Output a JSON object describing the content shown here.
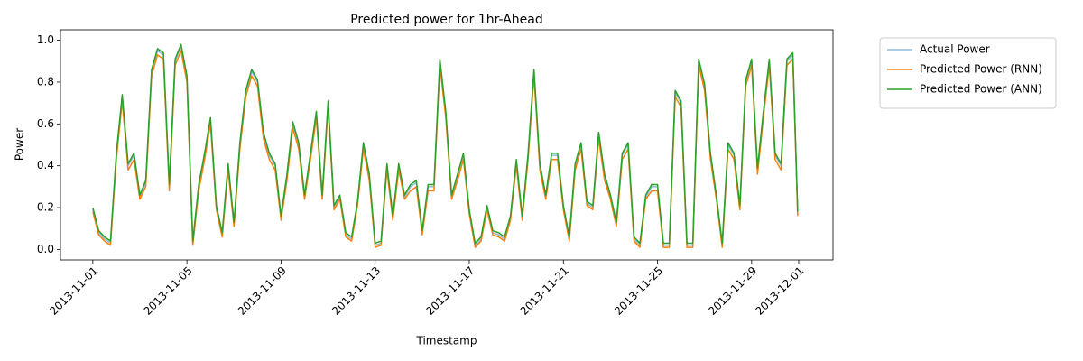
{
  "chart_data": {
    "type": "line",
    "title": "Predicted power for 1hr-Ahead",
    "xlabel": "Timestamp",
    "ylabel": "Power",
    "x": [
      "2013-11-01 00:00",
      "2013-11-01 06:00",
      "2013-11-01 12:00",
      "2013-11-01 18:00",
      "2013-11-02 00:00",
      "2013-11-02 06:00",
      "2013-11-02 12:00",
      "2013-11-02 18:00",
      "2013-11-03 00:00",
      "2013-11-03 06:00",
      "2013-11-03 12:00",
      "2013-11-03 18:00",
      "2013-11-04 00:00",
      "2013-11-04 06:00",
      "2013-11-04 12:00",
      "2013-11-04 18:00",
      "2013-11-05 00:00",
      "2013-11-05 06:00",
      "2013-11-05 12:00",
      "2013-11-05 18:00",
      "2013-11-06 00:00",
      "2013-11-06 06:00",
      "2013-11-06 12:00",
      "2013-11-06 18:00",
      "2013-11-07 00:00",
      "2013-11-07 06:00",
      "2013-11-07 12:00",
      "2013-11-07 18:00",
      "2013-11-08 00:00",
      "2013-11-08 06:00",
      "2013-11-08 12:00",
      "2013-11-08 18:00",
      "2013-11-09 00:00",
      "2013-11-09 06:00",
      "2013-11-09 12:00",
      "2013-11-09 18:00",
      "2013-11-10 00:00",
      "2013-11-10 06:00",
      "2013-11-10 12:00",
      "2013-11-10 18:00",
      "2013-11-11 00:00",
      "2013-11-11 06:00",
      "2013-11-11 12:00",
      "2013-11-11 18:00",
      "2013-11-12 00:00",
      "2013-11-12 06:00",
      "2013-11-12 12:00",
      "2013-11-12 18:00",
      "2013-11-13 00:00",
      "2013-11-13 06:00",
      "2013-11-13 12:00",
      "2013-11-13 18:00",
      "2013-11-14 00:00",
      "2013-11-14 06:00",
      "2013-11-14 12:00",
      "2013-11-14 18:00",
      "2013-11-15 00:00",
      "2013-11-15 06:00",
      "2013-11-15 12:00",
      "2013-11-15 18:00",
      "2013-11-16 00:00",
      "2013-11-16 06:00",
      "2013-11-16 12:00",
      "2013-11-16 18:00",
      "2013-11-17 00:00",
      "2013-11-17 06:00",
      "2013-11-17 12:00",
      "2013-11-17 18:00",
      "2013-11-18 00:00",
      "2013-11-18 06:00",
      "2013-11-18 12:00",
      "2013-11-18 18:00",
      "2013-11-19 00:00",
      "2013-11-19 06:00",
      "2013-11-19 12:00",
      "2013-11-19 18:00",
      "2013-11-20 00:00",
      "2013-11-20 06:00",
      "2013-11-20 12:00",
      "2013-11-20 18:00",
      "2013-11-21 00:00",
      "2013-11-21 06:00",
      "2013-11-21 12:00",
      "2013-11-21 18:00",
      "2013-11-22 00:00",
      "2013-11-22 06:00",
      "2013-11-22 12:00",
      "2013-11-22 18:00",
      "2013-11-23 00:00",
      "2013-11-23 06:00",
      "2013-11-23 12:00",
      "2013-11-23 18:00",
      "2013-11-24 00:00",
      "2013-11-24 06:00",
      "2013-11-24 12:00",
      "2013-11-24 18:00",
      "2013-11-25 00:00",
      "2013-11-25 06:00",
      "2013-11-25 12:00",
      "2013-11-25 18:00",
      "2013-11-26 00:00",
      "2013-11-26 06:00",
      "2013-11-26 12:00",
      "2013-11-26 18:00",
      "2013-11-27 00:00",
      "2013-11-27 06:00",
      "2013-11-27 12:00",
      "2013-11-27 18:00",
      "2013-11-28 00:00",
      "2013-11-28 06:00",
      "2013-11-28 12:00",
      "2013-11-28 18:00",
      "2013-11-29 00:00",
      "2013-11-29 06:00",
      "2013-11-29 12:00",
      "2013-11-29 18:00",
      "2013-11-30 00:00",
      "2013-11-30 06:00",
      "2013-11-30 12:00",
      "2013-11-30 18:00",
      "2013-11-30 23:00"
    ],
    "series": [
      {
        "name": "Actual Power",
        "color": "#1f77b4",
        "opacity": 0.5,
        "values": [
          0.19,
          0.08,
          0.05,
          0.03,
          0.45,
          0.73,
          0.4,
          0.45,
          0.25,
          0.32,
          0.85,
          0.95,
          0.93,
          0.3,
          0.9,
          0.97,
          0.82,
          0.03,
          0.3,
          0.45,
          0.62,
          0.2,
          0.07,
          0.4,
          0.12,
          0.5,
          0.75,
          0.85,
          0.8,
          0.55,
          0.45,
          0.4,
          0.15,
          0.35,
          0.6,
          0.5,
          0.25,
          0.45,
          0.65,
          0.25,
          0.7,
          0.2,
          0.25,
          0.07,
          0.05,
          0.22,
          0.5,
          0.35,
          0.02,
          0.03,
          0.4,
          0.15,
          0.4,
          0.25,
          0.3,
          0.32,
          0.08,
          0.3,
          0.3,
          0.9,
          0.65,
          0.25,
          0.35,
          0.45,
          0.18,
          0.02,
          0.05,
          0.2,
          0.08,
          0.07,
          0.05,
          0.15,
          0.42,
          0.15,
          0.45,
          0.85,
          0.4,
          0.25,
          0.45,
          0.45,
          0.2,
          0.05,
          0.4,
          0.5,
          0.22,
          0.2,
          0.55,
          0.35,
          0.25,
          0.12,
          0.45,
          0.5,
          0.05,
          0.02,
          0.25,
          0.3,
          0.3,
          0.02,
          0.02,
          0.75,
          0.7,
          0.02,
          0.02,
          0.9,
          0.78,
          0.45,
          0.25,
          0.02,
          0.5,
          0.45,
          0.2,
          0.8,
          0.9,
          0.38,
          0.65,
          0.9,
          0.45,
          0.4,
          0.9,
          0.93,
          0.17
        ]
      },
      {
        "name": "Predicted Power (RNN)",
        "color": "#ff7f0e",
        "opacity": 1,
        "values": [
          0.18,
          0.07,
          0.04,
          0.02,
          0.43,
          0.71,
          0.38,
          0.43,
          0.24,
          0.3,
          0.83,
          0.93,
          0.91,
          0.28,
          0.88,
          0.95,
          0.8,
          0.02,
          0.28,
          0.43,
          0.6,
          0.19,
          0.06,
          0.38,
          0.11,
          0.48,
          0.73,
          0.83,
          0.78,
          0.53,
          0.43,
          0.38,
          0.14,
          0.33,
          0.58,
          0.48,
          0.24,
          0.43,
          0.63,
          0.24,
          0.68,
          0.19,
          0.24,
          0.06,
          0.04,
          0.21,
          0.48,
          0.33,
          0.01,
          0.02,
          0.38,
          0.14,
          0.38,
          0.24,
          0.28,
          0.3,
          0.07,
          0.28,
          0.28,
          0.88,
          0.63,
          0.24,
          0.33,
          0.43,
          0.17,
          0.01,
          0.04,
          0.19,
          0.07,
          0.06,
          0.04,
          0.14,
          0.4,
          0.14,
          0.43,
          0.83,
          0.38,
          0.24,
          0.43,
          0.43,
          0.19,
          0.04,
          0.38,
          0.48,
          0.21,
          0.19,
          0.53,
          0.33,
          0.24,
          0.11,
          0.43,
          0.48,
          0.04,
          0.01,
          0.24,
          0.28,
          0.28,
          0.01,
          0.01,
          0.73,
          0.68,
          0.01,
          0.01,
          0.88,
          0.76,
          0.43,
          0.24,
          0.01,
          0.48,
          0.43,
          0.19,
          0.78,
          0.88,
          0.36,
          0.63,
          0.88,
          0.43,
          0.38,
          0.88,
          0.91,
          0.16
        ]
      },
      {
        "name": "Predicted Power (ANN)",
        "color": "#2ca02c",
        "opacity": 1,
        "values": [
          0.2,
          0.09,
          0.06,
          0.04,
          0.46,
          0.74,
          0.41,
          0.46,
          0.26,
          0.33,
          0.86,
          0.96,
          0.94,
          0.31,
          0.91,
          0.98,
          0.83,
          0.04,
          0.31,
          0.46,
          0.63,
          0.21,
          0.08,
          0.41,
          0.13,
          0.51,
          0.76,
          0.86,
          0.81,
          0.56,
          0.46,
          0.41,
          0.16,
          0.36,
          0.61,
          0.51,
          0.26,
          0.46,
          0.66,
          0.26,
          0.71,
          0.21,
          0.26,
          0.08,
          0.06,
          0.23,
          0.51,
          0.36,
          0.03,
          0.04,
          0.41,
          0.16,
          0.41,
          0.26,
          0.31,
          0.33,
          0.09,
          0.31,
          0.31,
          0.91,
          0.66,
          0.26,
          0.36,
          0.46,
          0.19,
          0.03,
          0.06,
          0.21,
          0.09,
          0.08,
          0.06,
          0.16,
          0.43,
          0.16,
          0.46,
          0.86,
          0.41,
          0.26,
          0.46,
          0.46,
          0.21,
          0.06,
          0.41,
          0.51,
          0.23,
          0.21,
          0.56,
          0.36,
          0.26,
          0.13,
          0.46,
          0.51,
          0.06,
          0.03,
          0.26,
          0.31,
          0.31,
          0.03,
          0.03,
          0.76,
          0.71,
          0.03,
          0.03,
          0.91,
          0.79,
          0.46,
          0.26,
          0.03,
          0.51,
          0.46,
          0.21,
          0.81,
          0.91,
          0.39,
          0.66,
          0.91,
          0.46,
          0.41,
          0.91,
          0.94,
          0.18
        ]
      }
    ],
    "xlim": [
      "2013-10-30 15:00",
      "2013-12-02 11:00"
    ],
    "xticks": [
      "2013-11-01",
      "2013-11-05",
      "2013-11-09",
      "2013-11-13",
      "2013-11-17",
      "2013-11-21",
      "2013-11-25",
      "2013-11-29",
      "2013-12-01"
    ],
    "ylim": [
      -0.05,
      1.05
    ],
    "yticks": [
      {
        "value": 0,
        "label": "0.0"
      },
      {
        "value": 0.2,
        "label": "0.2"
      },
      {
        "value": 0.4,
        "label": "0.4"
      },
      {
        "value": 0.6,
        "label": "0.6"
      },
      {
        "value": 0.8,
        "label": "0.8"
      },
      {
        "value": 1,
        "label": "1.0"
      }
    ],
    "grid": false,
    "legend": "outside upper right"
  }
}
